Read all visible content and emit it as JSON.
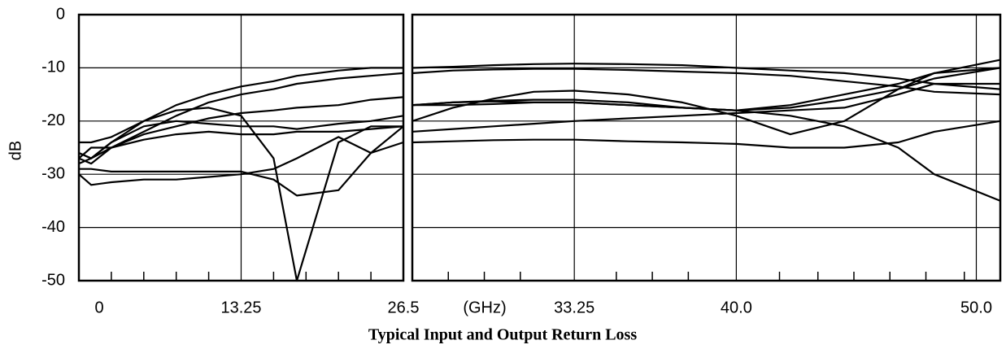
{
  "chart_data": {
    "type": "line",
    "title": "Typical Input and Output Return Loss",
    "ylabel": "dB",
    "x_unit": "(GHz)",
    "ylim": [
      -50,
      0
    ],
    "yticks": [
      0,
      -10,
      -20,
      -30,
      -40,
      -50
    ],
    "grid": true,
    "panels": [
      {
        "xlim": [
          0,
          26.5
        ],
        "xticks": [
          0,
          13.25,
          26.5
        ],
        "minor_xticks": [
          2.65,
          5.3,
          7.95,
          10.6,
          15.9,
          18.55,
          21.2,
          23.85
        ],
        "x": [
          0,
          1,
          2.65,
          5.3,
          7.95,
          10.6,
          13.25,
          15.9,
          17.8,
          21.2,
          23.85,
          26.5
        ],
        "series": [
          {
            "color": "#000000",
            "values": [
              -24,
              -24,
              -23,
              -20,
              -17,
              -15,
              -13.5,
              -12.5,
              -11.5,
              -10.5,
              -10,
              -10
            ]
          },
          {
            "color": "#000000",
            "values": [
              -26,
              -27,
              -25,
              -22,
              -19,
              -16.5,
              -15,
              -14,
              -13,
              -12,
              -11.5,
              -11
            ]
          },
          {
            "color": "#000000",
            "values": [
              -27,
              -28,
              -25,
              -22.5,
              -21,
              -19.5,
              -18.5,
              -18,
              -17.5,
              -17,
              -16,
              -15.5
            ]
          },
          {
            "color": "#000000",
            "values": [
              -28,
              -27,
              -24,
              -20,
              -18,
              -17.5,
              -19,
              -27,
              -50,
              -24,
              -21,
              -21
            ]
          },
          {
            "color": "#000000",
            "values": [
              -30,
              -32,
              -31.5,
              -31,
              -31,
              -30.5,
              -30,
              -29,
              -27,
              -23,
              -26,
              -21
            ]
          },
          {
            "color": "#000000",
            "values": [
              -29,
              -29,
              -29.5,
              -29.5,
              -29.5,
              -29.5,
              -29.5,
              -31,
              -34,
              -33,
              -26,
              -24
            ]
          },
          {
            "color": "#000000",
            "values": [
              -26,
              -27,
              -24,
              -21,
              -20,
              -20.5,
              -21,
              -21,
              -21.5,
              -20.5,
              -20,
              -19
            ]
          },
          {
            "color": "#000000",
            "values": [
              -27,
              -25,
              -25,
              -23.5,
              -22.5,
              -22,
              -22.5,
              -22.5,
              -22,
              -22,
              -21.5,
              -21
            ]
          }
        ]
      },
      {
        "xlim": [
          26.5,
          51
        ],
        "xticks": [
          33.25,
          {
            "value": 40,
            "label": "40.0"
          },
          {
            "value": 50,
            "label": "50.0"
          }
        ],
        "minor_xticks": [
          28,
          29.5,
          31,
          35,
          36.5,
          38,
          41.8,
          43.4,
          44.9,
          46.4,
          47.9,
          49.5
        ],
        "x": [
          26.5,
          28.19,
          29.88,
          31.56,
          33.25,
          35.5,
          37.75,
          40,
          42.25,
          44.5,
          46.75,
          48.25,
          51
        ],
        "series": [
          {
            "color": "#000000",
            "values": [
              -10,
              -9.8,
              -9.5,
              -9.3,
              -9.2,
              -9.3,
              -9.5,
              -10,
              -10.5,
              -11,
              -12,
              -13,
              -14
            ]
          },
          {
            "color": "#000000",
            "values": [
              -11,
              -10.5,
              -10.3,
              -10.2,
              -10.2,
              -10.4,
              -10.7,
              -11,
              -11.5,
              -12.5,
              -13.5,
              -14.5,
              -15
            ]
          },
          {
            "color": "#000000",
            "values": [
              -17,
              -16.5,
              -16.2,
              -16,
              -16,
              -16.5,
              -17.5,
              -18,
              -17.5,
              -16,
              -14,
              -12,
              -10
            ]
          },
          {
            "color": "#000000",
            "values": [
              -20,
              -17.5,
              -15.8,
              -14.5,
              -14.3,
              -15,
              -16.5,
              -19,
              -22.5,
              -20,
              -14,
              -11,
              -8.5
            ]
          },
          {
            "color": "#000000",
            "values": [
              -17,
              -16.5,
              -16.3,
              -16.5,
              -16.5,
              -17,
              -17.5,
              -18,
              -19,
              -21,
              -25,
              -30,
              -35
            ]
          },
          {
            "color": "#000000",
            "values": [
              -24,
              -23.8,
              -23.6,
              -23.5,
              -23.5,
              -23.8,
              -24,
              -24.3,
              -25,
              -25,
              -24,
              -22,
              -20
            ]
          },
          {
            "color": "#000000",
            "values": [
              -22,
              -21.5,
              -21,
              -20.5,
              -20,
              -19.5,
              -19,
              -18.5,
              -18,
              -17.5,
              -15,
              -13,
              -13
            ]
          },
          {
            "color": "#000000",
            "values": [
              -17,
              -17,
              -16.8,
              -16.5,
              -16.5,
              -17,
              -17.5,
              -18,
              -17,
              -15,
              -13,
              -11,
              -10
            ]
          }
        ]
      }
    ]
  }
}
